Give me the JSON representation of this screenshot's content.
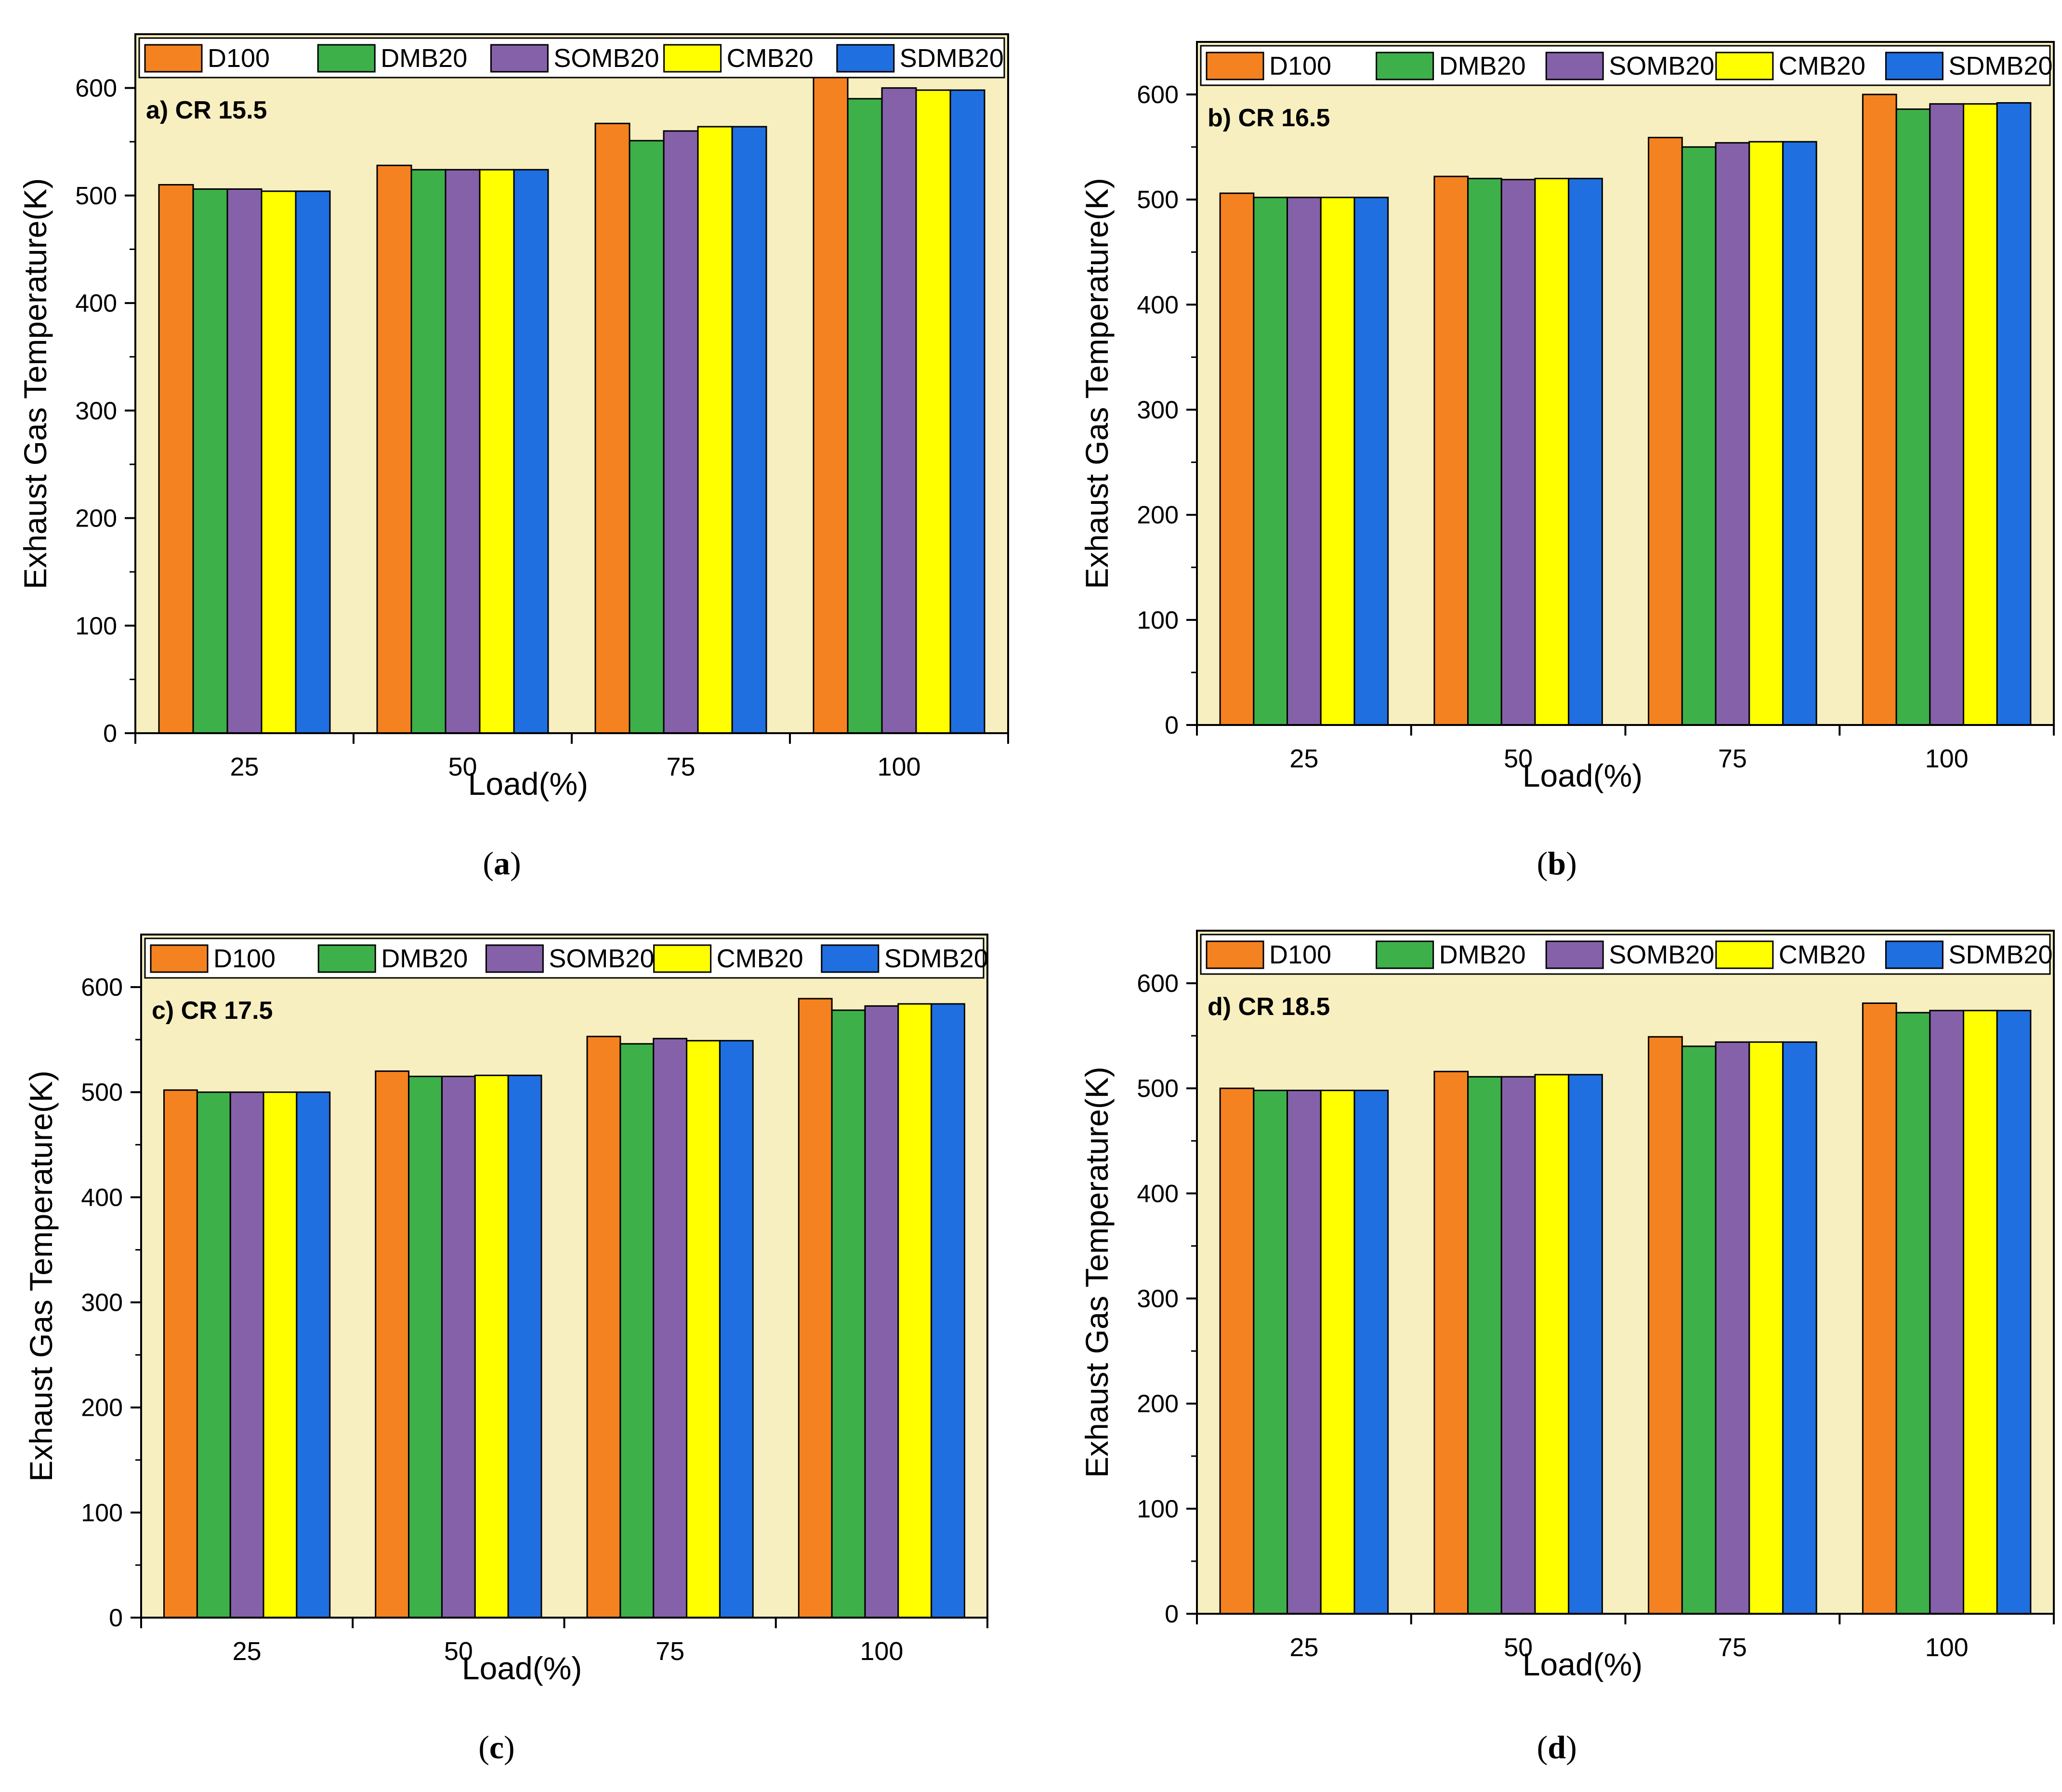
{
  "chart_data": [
    {
      "type": "bar",
      "title": "a) CR 15.5",
      "caption": "a",
      "xlabel": "Load(%)",
      "ylabel": "Exhaust Gas Temperature(K)",
      "ylim": [
        0,
        650
      ],
      "yticks": [
        "0",
        "100",
        "200",
        "300",
        "400",
        "500",
        "600"
      ],
      "categories": [
        "25",
        "50",
        "75",
        "100"
      ],
      "series": [
        {
          "name": "D100",
          "values": [
            510,
            528,
            567,
            610
          ]
        },
        {
          "name": "DMB20",
          "values": [
            506,
            524,
            551,
            590
          ]
        },
        {
          "name": "SOMB20",
          "values": [
            506,
            524,
            560,
            600
          ]
        },
        {
          "name": "CMB20",
          "values": [
            504,
            524,
            564,
            598
          ]
        },
        {
          "name": "SDMB20",
          "values": [
            504,
            524,
            564,
            598
          ]
        }
      ]
    },
    {
      "type": "bar",
      "title": "b) CR 16.5",
      "caption": "b",
      "xlabel": "Load(%)",
      "ylabel": "Exhaust Gas Temperature(K)",
      "ylim": [
        0,
        650
      ],
      "yticks": [
        "0",
        "100",
        "200",
        "300",
        "400",
        "500",
        "600"
      ],
      "categories": [
        "25",
        "50",
        "75",
        "100"
      ],
      "series": [
        {
          "name": "D100",
          "values": [
            506,
            522,
            559,
            600
          ]
        },
        {
          "name": "DMB20",
          "values": [
            502,
            520,
            550,
            586
          ]
        },
        {
          "name": "SOMB20",
          "values": [
            502,
            519,
            554,
            591
          ]
        },
        {
          "name": "CMB20",
          "values": [
            502,
            520,
            555,
            591
          ]
        },
        {
          "name": "SDMB20",
          "values": [
            502,
            520,
            555,
            592
          ]
        }
      ]
    },
    {
      "type": "bar",
      "title": "c) CR 17.5",
      "caption": "c",
      "xlabel": "Load(%)",
      "ylabel": "Exhaust Gas Temperature(K)",
      "ylim": [
        0,
        650
      ],
      "yticks": [
        "0",
        "100",
        "200",
        "300",
        "400",
        "500",
        "600"
      ],
      "categories": [
        "25",
        "50",
        "75",
        "100"
      ],
      "series": [
        {
          "name": "D100",
          "values": [
            502,
            520,
            553,
            589
          ]
        },
        {
          "name": "DMB20",
          "values": [
            500,
            515,
            546,
            578
          ]
        },
        {
          "name": "SOMB20",
          "values": [
            500,
            515,
            551,
            582
          ]
        },
        {
          "name": "CMB20",
          "values": [
            500,
            516,
            549,
            584
          ]
        },
        {
          "name": "SDMB20",
          "values": [
            500,
            516,
            549,
            584
          ]
        }
      ]
    },
    {
      "type": "bar",
      "title": "d) CR 18.5",
      "caption": "d",
      "xlabel": "Load(%)",
      "ylabel": "Exhaust Gas Temperature(K)",
      "ylim": [
        0,
        650
      ],
      "yticks": [
        "0",
        "100",
        "200",
        "300",
        "400",
        "500",
        "600"
      ],
      "categories": [
        "25",
        "50",
        "75",
        "100"
      ],
      "series": [
        {
          "name": "D100",
          "values": [
            500,
            516,
            549,
            581
          ]
        },
        {
          "name": "DMB20",
          "values": [
            498,
            511,
            540,
            572
          ]
        },
        {
          "name": "SOMB20",
          "values": [
            498,
            511,
            544,
            574
          ]
        },
        {
          "name": "CMB20",
          "values": [
            498,
            513,
            544,
            574
          ]
        },
        {
          "name": "SDMB20",
          "values": [
            498,
            513,
            544,
            574
          ]
        }
      ]
    }
  ],
  "colors": {
    "plot_bg": "#f7efbf",
    "series": [
      "#f58220",
      "#3db04a",
      "#8561aa",
      "#ffff00",
      "#1f6fe0"
    ]
  }
}
